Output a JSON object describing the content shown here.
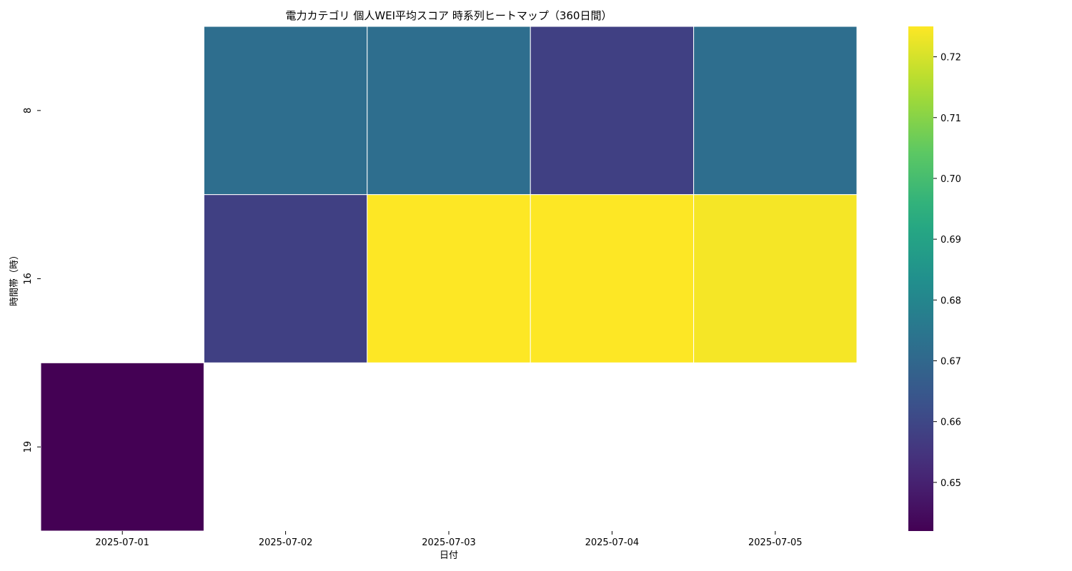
{
  "chart_data": {
    "type": "heatmap",
    "title": "電力カテゴリ 個人WEI平均スコア 時系列ヒートマップ（360日間）",
    "xlabel": "日付",
    "ylabel": "時間帯（時）",
    "x": [
      "2025-07-01",
      "2025-07-02",
      "2025-07-03",
      "2025-07-04",
      "2025-07-05"
    ],
    "y": [
      "8",
      "16",
      "19"
    ],
    "values": [
      [
        null,
        0.672,
        0.672,
        0.658,
        0.672
      ],
      [
        null,
        0.658,
        0.725,
        0.725,
        0.724
      ],
      [
        0.642,
        null,
        null,
        null,
        null
      ]
    ],
    "colormap": "viridis",
    "colorbar": {
      "min": 0.642,
      "max": 0.725,
      "ticks": [
        "0.65",
        "0.66",
        "0.67",
        "0.68",
        "0.69",
        "0.70",
        "0.71",
        "0.72"
      ]
    },
    "grid": false,
    "cell_border_color": "#ffffff"
  }
}
